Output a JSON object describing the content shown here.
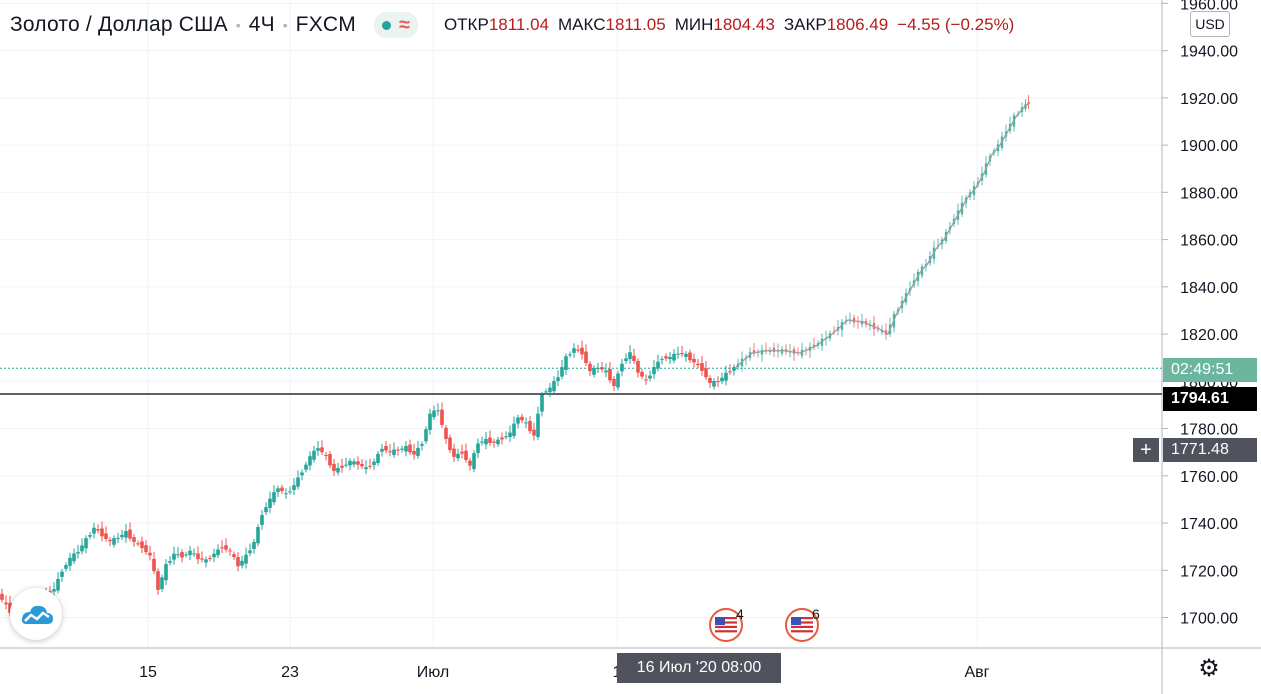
{
  "header": {
    "symbol": "Золото",
    "quote": "Доллар США",
    "interval": "4Ч",
    "source": "FXCM",
    "ohlc": [
      {
        "label": "ОТКР",
        "value": "1811.04"
      },
      {
        "label": "МАКС",
        "value": "1811.05"
      },
      {
        "label": "МИН",
        "value": "1804.43"
      },
      {
        "label": "ЗАКР",
        "value": "1806.49"
      },
      {
        "label": "",
        "value": "−4.55 (−0.25%)"
      }
    ]
  },
  "currency_button": "USD",
  "price_tags": {
    "countdown": "02:49:51",
    "level": "1794.61",
    "crosshair": "1771.48"
  },
  "crosshair_time": "16 Июл '20   08:00",
  "events": [
    {
      "icon": "us-flag-icon",
      "count": "4"
    },
    {
      "icon": "us-flag-icon",
      "count": "6"
    }
  ],
  "colors": {
    "up": "#26a69a",
    "down": "#ef5350",
    "grid": "#f0f3fa",
    "level_line": "#000000",
    "countdown_line": "#26a69a",
    "forecast": "#9e9e9e"
  },
  "chart_data": {
    "type": "candlestick",
    "title": "",
    "ylim": [
      1690,
      1960
    ],
    "y_ticks": [
      "1960.00",
      "1940.00",
      "1920.00",
      "1900.00",
      "1880.00",
      "1860.00",
      "1840.00",
      "1820.00",
      "1800.00",
      "1780.00",
      "1760.00",
      "1740.00",
      "1720.00",
      "1700.00"
    ],
    "x_ticks": [
      "15",
      "23",
      "Июл",
      "1",
      "Авг"
    ],
    "horizontal_level": 1794.61,
    "current_price": 1805.5,
    "crosshair_price": 1771.48,
    "price_path": [
      [
        0,
        1710
      ],
      [
        8,
        1705
      ],
      [
        16,
        1700
      ],
      [
        24,
        1698
      ],
      [
        32,
        1702
      ],
      [
        40,
        1704
      ],
      [
        48,
        1710
      ],
      [
        56,
        1712
      ],
      [
        64,
        1720
      ],
      [
        72,
        1725
      ],
      [
        80,
        1728
      ],
      [
        88,
        1733
      ],
      [
        96,
        1738
      ],
      [
        104,
        1735
      ],
      [
        112,
        1732
      ],
      [
        120,
        1734
      ],
      [
        128,
        1736
      ],
      [
        136,
        1732
      ],
      [
        144,
        1730
      ],
      [
        152,
        1726
      ],
      [
        160,
        1712
      ],
      [
        168,
        1722
      ],
      [
        176,
        1727
      ],
      [
        184,
        1726
      ],
      [
        192,
        1728
      ],
      [
        200,
        1725
      ],
      [
        208,
        1724
      ],
      [
        216,
        1727
      ],
      [
        224,
        1730
      ],
      [
        232,
        1728
      ],
      [
        240,
        1722
      ],
      [
        248,
        1726
      ],
      [
        256,
        1732
      ],
      [
        264,
        1744
      ],
      [
        272,
        1750
      ],
      [
        280,
        1755
      ],
      [
        288,
        1752
      ],
      [
        296,
        1756
      ],
      [
        304,
        1762
      ],
      [
        312,
        1768
      ],
      [
        320,
        1772
      ],
      [
        328,
        1768
      ],
      [
        336,
        1762
      ],
      [
        344,
        1764
      ],
      [
        352,
        1766
      ],
      [
        360,
        1765
      ],
      [
        368,
        1763
      ],
      [
        376,
        1766
      ],
      [
        384,
        1772
      ],
      [
        392,
        1770
      ],
      [
        400,
        1771
      ],
      [
        408,
        1772
      ],
      [
        416,
        1769
      ],
      [
        424,
        1774
      ],
      [
        432,
        1786
      ],
      [
        440,
        1788
      ],
      [
        448,
        1775
      ],
      [
        456,
        1768
      ],
      [
        464,
        1770
      ],
      [
        472,
        1764
      ],
      [
        480,
        1774
      ],
      [
        488,
        1775
      ],
      [
        496,
        1774
      ],
      [
        504,
        1776
      ],
      [
        512,
        1778
      ],
      [
        520,
        1785
      ],
      [
        528,
        1782
      ],
      [
        536,
        1777
      ],
      [
        544,
        1795
      ],
      [
        552,
        1797
      ],
      [
        560,
        1802
      ],
      [
        568,
        1810
      ],
      [
        576,
        1814
      ],
      [
        584,
        1812
      ],
      [
        592,
        1804
      ],
      [
        600,
        1806
      ],
      [
        608,
        1804
      ],
      [
        616,
        1798
      ],
      [
        624,
        1808
      ],
      [
        632,
        1812
      ],
      [
        640,
        1804
      ],
      [
        648,
        1800
      ],
      [
        656,
        1806
      ],
      [
        664,
        1810
      ],
      [
        672,
        1810
      ],
      [
        680,
        1812
      ],
      [
        688,
        1811
      ],
      [
        696,
        1808
      ],
      [
        704,
        1805
      ],
      [
        712,
        1799
      ],
      [
        720,
        1800
      ],
      [
        728,
        1803
      ],
      [
        736,
        1806
      ]
    ],
    "forecast_path": [
      [
        736,
        1806
      ],
      [
        752,
        1812
      ],
      [
        768,
        1813
      ],
      [
        784,
        1813
      ],
      [
        800,
        1812
      ],
      [
        816,
        1815
      ],
      [
        832,
        1820
      ],
      [
        848,
        1826
      ],
      [
        864,
        1825
      ],
      [
        880,
        1822
      ],
      [
        888,
        1820
      ],
      [
        896,
        1828
      ],
      [
        904,
        1834
      ],
      [
        912,
        1840
      ],
      [
        920,
        1846
      ],
      [
        928,
        1850
      ],
      [
        936,
        1856
      ],
      [
        944,
        1860
      ],
      [
        952,
        1866
      ],
      [
        960,
        1872
      ],
      [
        968,
        1878
      ],
      [
        976,
        1882
      ],
      [
        984,
        1888
      ],
      [
        992,
        1896
      ],
      [
        1000,
        1900
      ],
      [
        1008,
        1906
      ],
      [
        1016,
        1912
      ],
      [
        1024,
        1916
      ],
      [
        1030,
        1918
      ]
    ]
  }
}
